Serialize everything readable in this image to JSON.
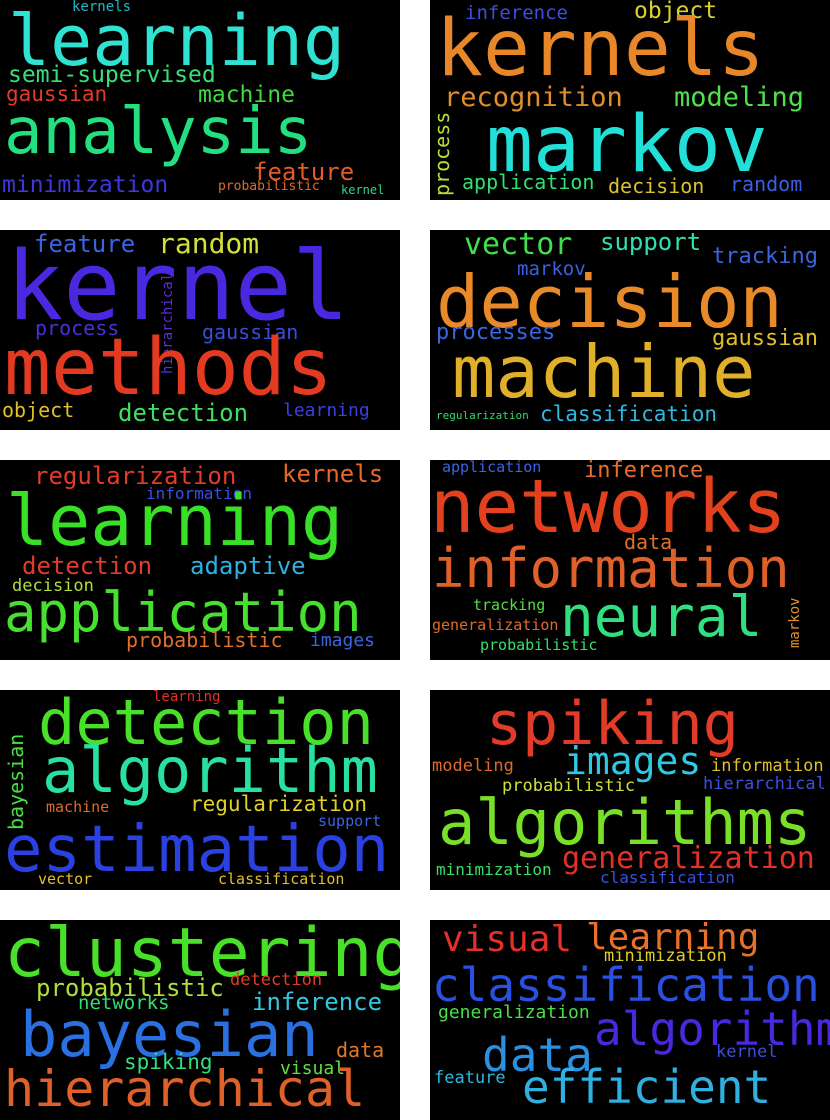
{
  "colors": {
    "background": "#ffffff",
    "panel": "#000000"
  },
  "panels": [
    {
      "words": [
        {
          "text": "kernels",
          "color": "#23b7c9",
          "orientation": "horizontal"
        },
        {
          "text": "learning",
          "color": "#2fe2d2",
          "orientation": "horizontal"
        },
        {
          "text": "semi-supervised",
          "color": "#38e07a",
          "orientation": "horizontal"
        },
        {
          "text": "gaussian",
          "color": "#e33b2a",
          "orientation": "horizontal"
        },
        {
          "text": "machine",
          "color": "#40d93e",
          "orientation": "horizontal"
        },
        {
          "text": "analysis",
          "color": "#22e080",
          "orientation": "horizontal"
        },
        {
          "text": "feature",
          "color": "#e35a2b",
          "orientation": "horizontal"
        },
        {
          "text": "minimization",
          "color": "#3f37d8",
          "orientation": "horizontal"
        },
        {
          "text": "probabilistic",
          "color": "#e06a2a",
          "orientation": "horizontal"
        },
        {
          "text": "kernel",
          "color": "#2fd58a",
          "orientation": "horizontal"
        }
      ]
    },
    {
      "words": [
        {
          "text": "inference",
          "color": "#3c4fe0",
          "orientation": "horizontal"
        },
        {
          "text": "object",
          "color": "#d9d330",
          "orientation": "horizontal"
        },
        {
          "text": "kernels",
          "color": "#e8862a",
          "orientation": "horizontal"
        },
        {
          "text": "recognition",
          "color": "#e28c2a",
          "orientation": "horizontal"
        },
        {
          "text": "modeling",
          "color": "#4fe04a",
          "orientation": "horizontal"
        },
        {
          "text": "process",
          "color": "#b7e03a",
          "orientation": "vertical"
        },
        {
          "text": "markov",
          "color": "#22e0d8",
          "orientation": "horizontal"
        },
        {
          "text": "application",
          "color": "#30e070",
          "orientation": "horizontal"
        },
        {
          "text": "decision",
          "color": "#d9c22e",
          "orientation": "horizontal"
        },
        {
          "text": "random",
          "color": "#3b5fe0",
          "orientation": "horizontal"
        }
      ]
    },
    {
      "words": [
        {
          "text": "feature",
          "color": "#3b64e0",
          "orientation": "horizontal"
        },
        {
          "text": "random",
          "color": "#d4e03a",
          "orientation": "horizontal"
        },
        {
          "text": "kernel",
          "color": "#4a28e0",
          "orientation": "horizontal"
        },
        {
          "text": "process",
          "color": "#4a2fd8",
          "orientation": "horizontal"
        },
        {
          "text": "hierarchical",
          "color": "#5a2fe0",
          "orientation": "vertical"
        },
        {
          "text": "gaussian",
          "color": "#3a4fd8",
          "orientation": "horizontal"
        },
        {
          "text": "methods",
          "color": "#e53a22",
          "orientation": "horizontal"
        },
        {
          "text": "object",
          "color": "#e0c02a",
          "orientation": "horizontal"
        },
        {
          "text": "detection",
          "color": "#3fe060",
          "orientation": "horizontal"
        },
        {
          "text": "learning",
          "color": "#3a40e0",
          "orientation": "horizontal"
        }
      ]
    },
    {
      "words": [
        {
          "text": "vector",
          "color": "#3fe04a",
          "orientation": "horizontal"
        },
        {
          "text": "support",
          "color": "#2fe0b0",
          "orientation": "horizontal"
        },
        {
          "text": "markov",
          "color": "#3b5fe0",
          "orientation": "horizontal"
        },
        {
          "text": "tracking",
          "color": "#3b64e0",
          "orientation": "horizontal"
        },
        {
          "text": "decision",
          "color": "#e88a2a",
          "orientation": "horizontal"
        },
        {
          "text": "processes",
          "color": "#3b64e0",
          "orientation": "horizontal"
        },
        {
          "text": "gaussian",
          "color": "#e0c02a",
          "orientation": "horizontal"
        },
        {
          "text": "machine",
          "color": "#e0b02a",
          "orientation": "horizontal"
        },
        {
          "text": "regularization",
          "color": "#38d86a",
          "orientation": "horizontal"
        },
        {
          "text": "classification",
          "color": "#2fb8e0",
          "orientation": "horizontal"
        }
      ]
    },
    {
      "words": [
        {
          "text": "regularization",
          "color": "#e33b2a",
          "orientation": "horizontal"
        },
        {
          "text": "kernels",
          "color": "#e8662a",
          "orientation": "horizontal"
        },
        {
          "text": "information",
          "color": "#3b4fe0",
          "orientation": "horizontal"
        },
        {
          "text": "learning",
          "color": "#38e028",
          "orientation": "horizontal"
        },
        {
          "text": "detection",
          "color": "#e33b2a",
          "orientation": "horizontal"
        },
        {
          "text": "adaptive",
          "color": "#2fb0e0",
          "orientation": "horizontal"
        },
        {
          "text": "decision",
          "color": "#b0e03a",
          "orientation": "horizontal"
        },
        {
          "text": "application",
          "color": "#48e030",
          "orientation": "horizontal"
        },
        {
          "text": "probabilistic",
          "color": "#e0702a",
          "orientation": "horizontal"
        },
        {
          "text": "images",
          "color": "#3b64e0",
          "orientation": "horizontal"
        }
      ]
    },
    {
      "words": [
        {
          "text": "application",
          "color": "#3b64e0",
          "orientation": "horizontal"
        },
        {
          "text": "inference",
          "color": "#e8702a",
          "orientation": "horizontal"
        },
        {
          "text": "networks",
          "color": "#e3401e",
          "orientation": "horizontal"
        },
        {
          "text": "data",
          "color": "#e0702a",
          "orientation": "horizontal"
        },
        {
          "text": "information",
          "color": "#e0602a",
          "orientation": "horizontal"
        },
        {
          "text": "tracking",
          "color": "#50e040",
          "orientation": "horizontal"
        },
        {
          "text": "generalization",
          "color": "#e06a2a",
          "orientation": "horizontal"
        },
        {
          "text": "neural",
          "color": "#30e080",
          "orientation": "horizontal"
        },
        {
          "text": "markov",
          "color": "#e0902a",
          "orientation": "vertical"
        },
        {
          "text": "probabilistic",
          "color": "#38e068",
          "orientation": "horizontal"
        }
      ]
    },
    {
      "words": [
        {
          "text": "learning",
          "color": "#e3302a",
          "orientation": "horizontal"
        },
        {
          "text": "bayesian",
          "color": "#48e040",
          "orientation": "vertical"
        },
        {
          "text": "detection",
          "color": "#48e028",
          "orientation": "horizontal"
        },
        {
          "text": "algorithm",
          "color": "#28e0a0",
          "orientation": "horizontal"
        },
        {
          "text": "machine",
          "color": "#e06a2a",
          "orientation": "horizontal"
        },
        {
          "text": "regularization",
          "color": "#e0d02a",
          "orientation": "horizontal"
        },
        {
          "text": "support",
          "color": "#3b64e0",
          "orientation": "horizontal"
        },
        {
          "text": "estimation",
          "color": "#2a40e0",
          "orientation": "horizontal"
        },
        {
          "text": "vector",
          "color": "#e0c02a",
          "orientation": "horizontal"
        },
        {
          "text": "classification",
          "color": "#e0c02a",
          "orientation": "horizontal"
        }
      ]
    },
    {
      "words": [
        {
          "text": "spiking",
          "color": "#e33b2a",
          "orientation": "horizontal"
        },
        {
          "text": "modeling",
          "color": "#e06a2a",
          "orientation": "horizontal"
        },
        {
          "text": "images",
          "color": "#2fc8e0",
          "orientation": "horizontal"
        },
        {
          "text": "information",
          "color": "#e0c02a",
          "orientation": "horizontal"
        },
        {
          "text": "probabilistic",
          "color": "#d0e03a",
          "orientation": "horizontal"
        },
        {
          "text": "hierarchical",
          "color": "#3b4fe0",
          "orientation": "horizontal"
        },
        {
          "text": "algorithms",
          "color": "#78e028",
          "orientation": "horizontal"
        },
        {
          "text": "generalization",
          "color": "#e3302a",
          "orientation": "horizontal"
        },
        {
          "text": "minimization",
          "color": "#38e068",
          "orientation": "horizontal"
        },
        {
          "text": "classification",
          "color": "#3b4fe0",
          "orientation": "horizontal"
        }
      ]
    },
    {
      "words": [
        {
          "text": "clustering",
          "color": "#48e028",
          "orientation": "horizontal"
        },
        {
          "text": "probabilistic",
          "color": "#b0e03a",
          "orientation": "horizontal"
        },
        {
          "text": "detection",
          "color": "#e33b2a",
          "orientation": "horizontal"
        },
        {
          "text": "networks",
          "color": "#30e070",
          "orientation": "horizontal"
        },
        {
          "text": "inference",
          "color": "#2fc8e0",
          "orientation": "horizontal"
        },
        {
          "text": "bayesian",
          "color": "#2a70e0",
          "orientation": "horizontal"
        },
        {
          "text": "data",
          "color": "#e07a2a",
          "orientation": "horizontal"
        },
        {
          "text": "spiking",
          "color": "#30e080",
          "orientation": "horizontal"
        },
        {
          "text": "visual",
          "color": "#60e040",
          "orientation": "horizontal"
        },
        {
          "text": "hierarchical",
          "color": "#e0602a",
          "orientation": "horizontal"
        }
      ]
    },
    {
      "words": [
        {
          "text": "visual",
          "color": "#e3302a",
          "orientation": "horizontal"
        },
        {
          "text": "learning",
          "color": "#e8702a",
          "orientation": "horizontal"
        },
        {
          "text": "minimization",
          "color": "#e0d02a",
          "orientation": "horizontal"
        },
        {
          "text": "classification",
          "color": "#2a50e0",
          "orientation": "horizontal"
        },
        {
          "text": "generalization",
          "color": "#48e048",
          "orientation": "horizontal"
        },
        {
          "text": "algorithm",
          "color": "#4a28e0",
          "orientation": "horizontal"
        },
        {
          "text": "data",
          "color": "#2a90e0",
          "orientation": "horizontal"
        },
        {
          "text": "kernel",
          "color": "#3b4fe0",
          "orientation": "horizontal"
        },
        {
          "text": "feature",
          "color": "#2fb8e0",
          "orientation": "horizontal"
        },
        {
          "text": "efficient",
          "color": "#2fb0e0",
          "orientation": "horizontal"
        }
      ]
    }
  ]
}
